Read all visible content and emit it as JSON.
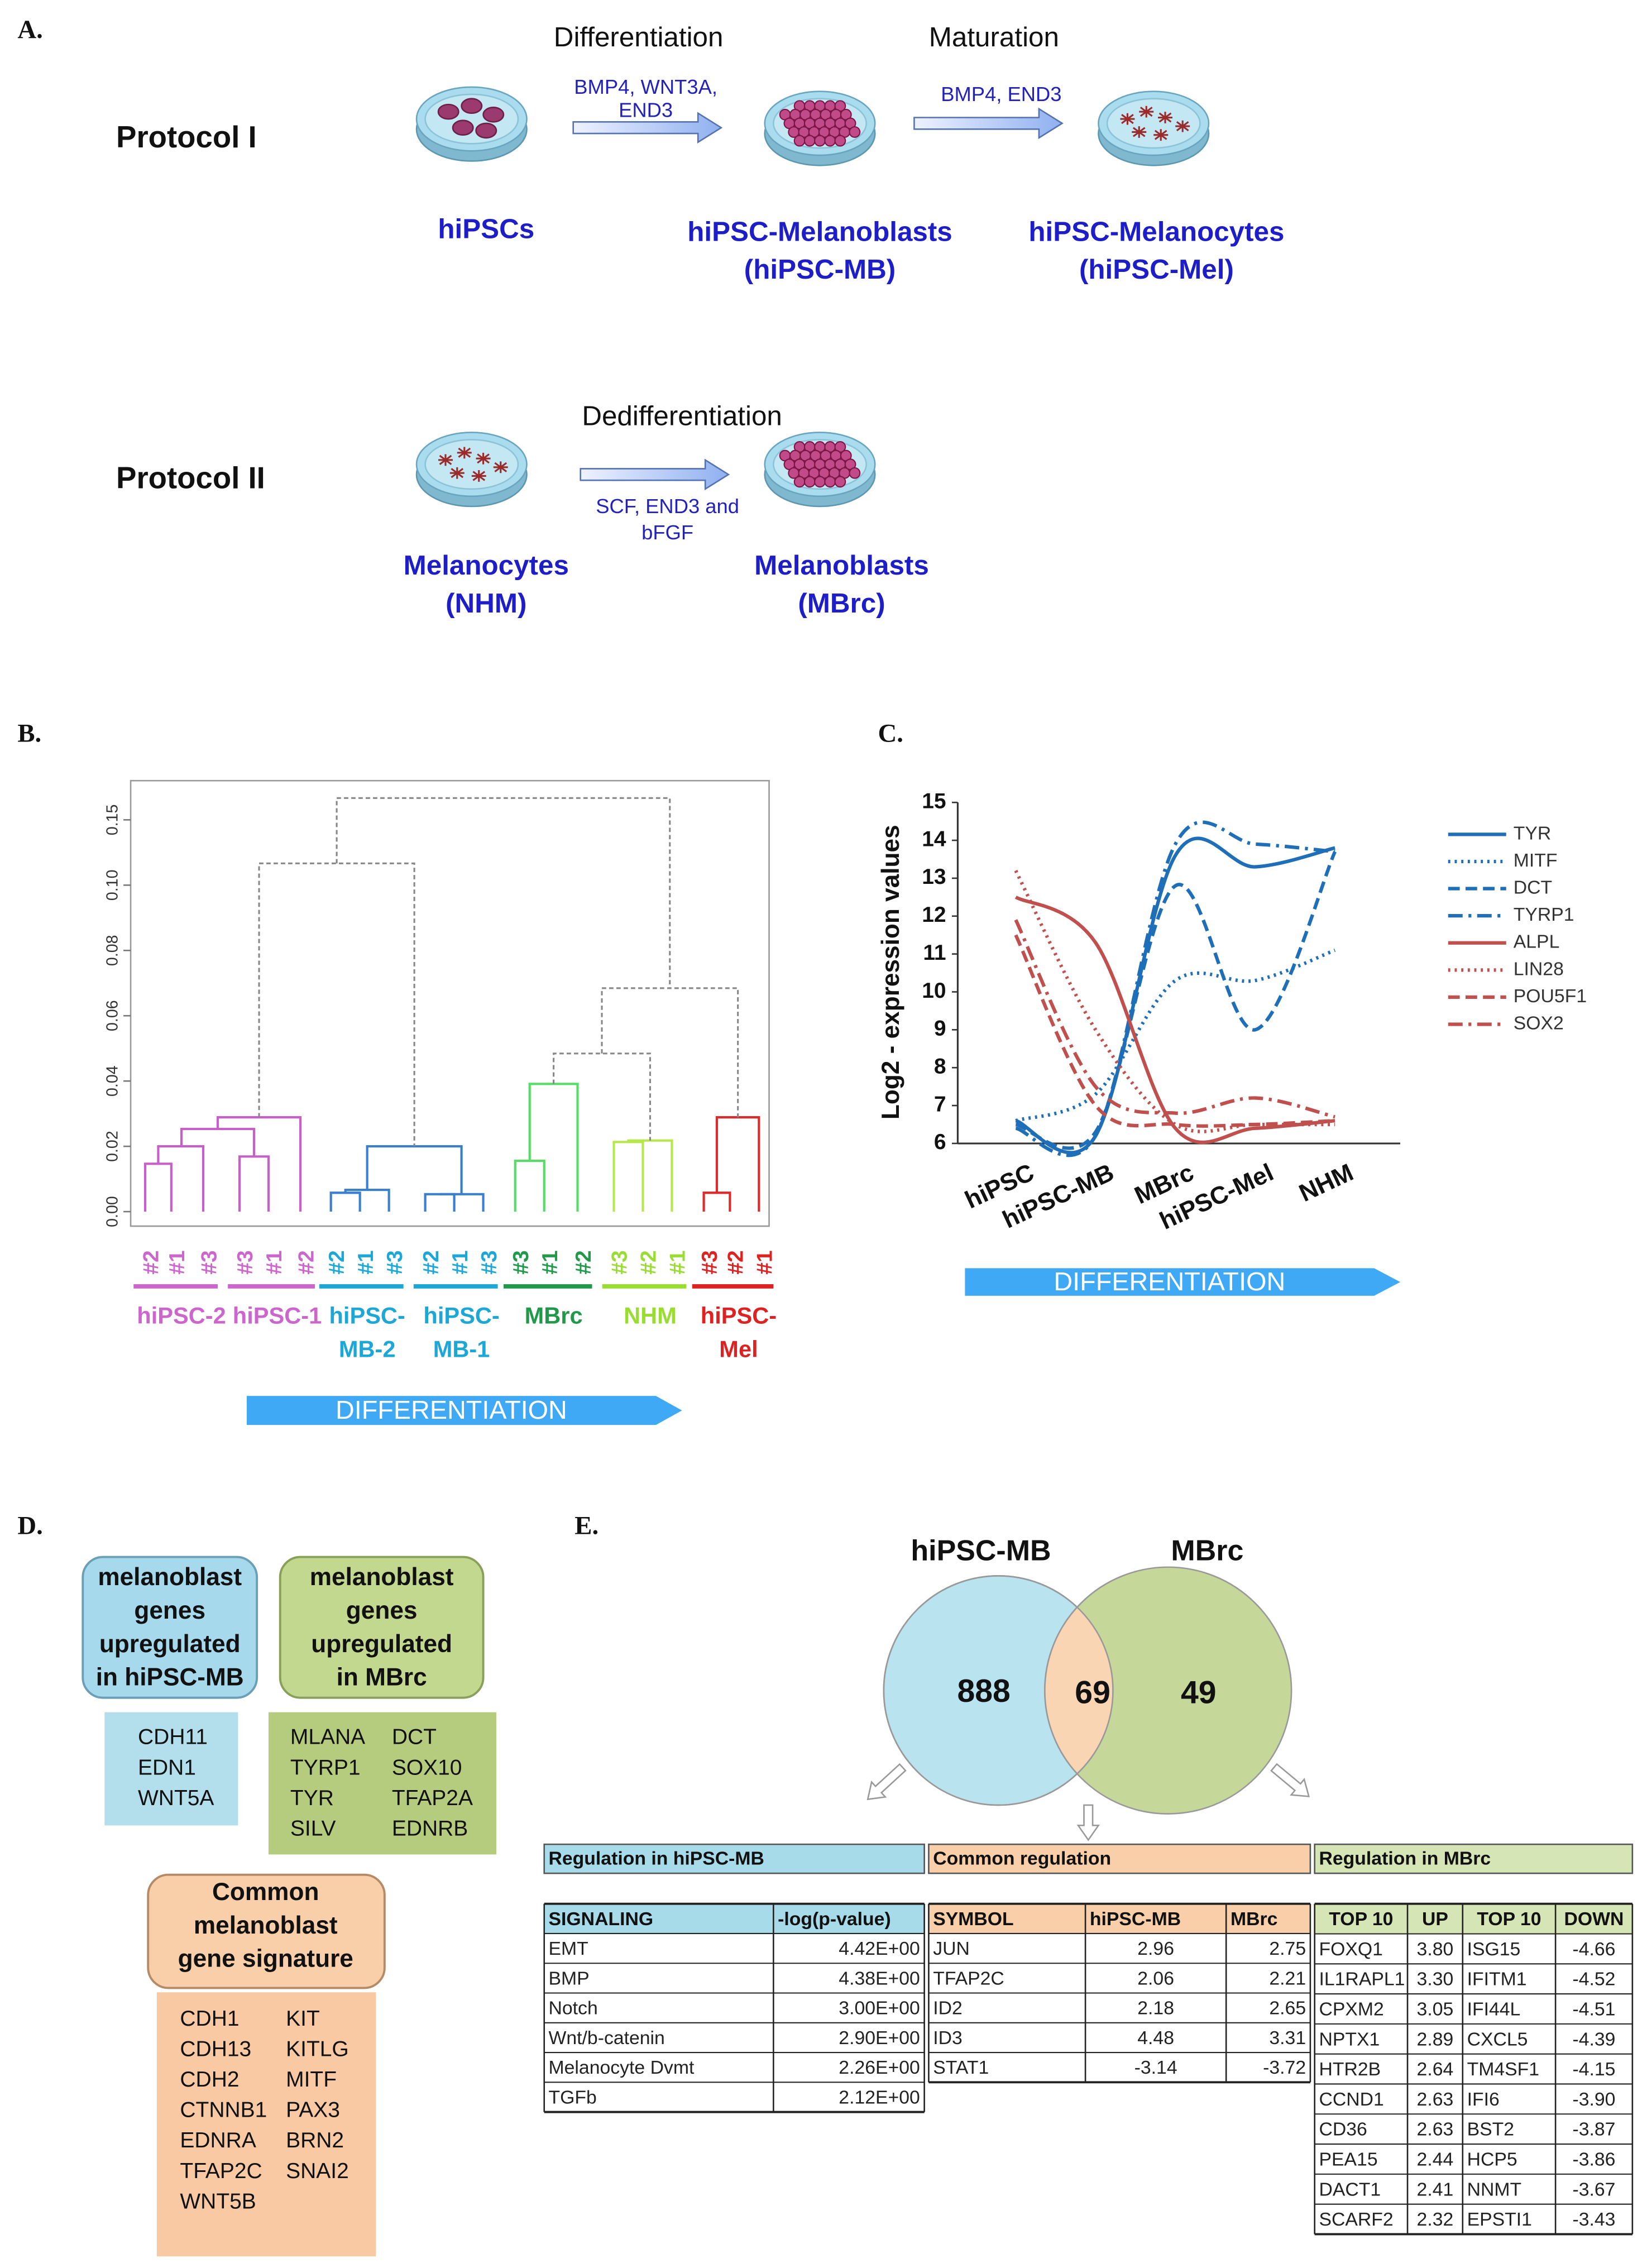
{
  "panel_a": {
    "label": "A.",
    "protocol_1": {
      "name": "Protocol I",
      "steps": [
        "Differentiation",
        "Maturation"
      ],
      "factors": [
        [
          "BMP4, WNT3A,",
          "END3"
        ],
        [
          "BMP4, END3"
        ]
      ],
      "cells": [
        [
          "hiPSCs"
        ],
        [
          "hiPSC-Melanoblasts",
          "(hiPSC-MB)"
        ],
        [
          "hiPSC-Melanocytes",
          "(hiPSC-Mel)"
        ]
      ]
    },
    "protocol_2": {
      "name": "Protocol II",
      "steps": [
        "Dedifferentiation"
      ],
      "factors": [
        [
          "SCF, END3 and",
          "bFGF"
        ]
      ],
      "cells": [
        [
          "Melanocytes",
          "(NHM)"
        ],
        [
          "Melanoblasts",
          "(MBrc)"
        ]
      ]
    }
  },
  "panel_b": {
    "label": "B.",
    "axis_labels": [
      "0.00",
      "0.02",
      "0.04",
      "0.06",
      "0.08",
      "0.10",
      "0.15"
    ],
    "groups": [
      {
        "name": [
          "hiPSC-2"
        ],
        "color": "#cc66cc",
        "branch_color": "#c85fc8",
        "leaves": [
          "#2",
          "#1",
          "#3"
        ]
      },
      {
        "name": [
          "hiPSC-1"
        ],
        "color": "#cc66cc",
        "branch_color": "#c85fc8",
        "leaves": [
          "#3",
          "#1",
          "#2"
        ]
      },
      {
        "name": [
          "hiPSC-",
          "MB-2"
        ],
        "color": "#1ca7d6",
        "branch_color": "#3a7fd0",
        "leaves": [
          "#2",
          "#1",
          "#3"
        ]
      },
      {
        "name": [
          "hiPSC-",
          "MB-1"
        ],
        "color": "#1ca7d6",
        "branch_color": "#3a7fd0",
        "leaves": [
          "#2",
          "#1",
          "#3"
        ]
      },
      {
        "name": [
          "MBrc"
        ],
        "color": "#22994a",
        "branch_color": "#55dd66",
        "leaves": [
          "#3",
          "#1",
          "#2"
        ]
      },
      {
        "name": [
          "NHM"
        ],
        "color": "#99dd33",
        "branch_color": "#b5e94a",
        "leaves": [
          "#3",
          "#2",
          "#1"
        ]
      },
      {
        "name": [
          "hiPSC-",
          "Mel"
        ],
        "color": "#dd2222",
        "branch_color": "#dd2b2b",
        "leaves": [
          "#3",
          "#2",
          "#1"
        ]
      }
    ],
    "arrow": "DIFFERENTIATION"
  },
  "chart_data": {
    "type": "line",
    "panel_label": "C.",
    "y_label": "Log2 - expression values",
    "arrow": "DIFFERENTIATION",
    "categories": [
      "hiPSC",
      "hiPSC-MB",
      "MBrc",
      "hiPSC-Mel",
      "NHM"
    ],
    "ylim": [
      6,
      15
    ],
    "yticks": [
      6,
      7,
      8,
      9,
      10,
      11,
      12,
      13,
      14,
      15
    ],
    "grid": false,
    "legend": "right",
    "series": [
      {
        "name": "TYR",
        "color": "#1f6fb8",
        "dash": "solid",
        "values": [
          6.6,
          6.2,
          13.6,
          13.3,
          13.8
        ]
      },
      {
        "name": "MITF",
        "color": "#1f6fb8",
        "dash": "dotted",
        "values": [
          6.6,
          7.3,
          10.3,
          10.3,
          11.1
        ]
      },
      {
        "name": "DCT",
        "color": "#1f6fb8",
        "dash": "dashed",
        "values": [
          6.5,
          6.3,
          12.8,
          9.0,
          13.7
        ]
      },
      {
        "name": "TYRP1",
        "color": "#1f6fb8",
        "dash": "dashdot",
        "values": [
          6.4,
          6.2,
          13.9,
          13.9,
          13.7
        ]
      },
      {
        "name": "ALPL",
        "color": "#c0504d",
        "dash": "solid",
        "values": [
          12.5,
          11.3,
          6.4,
          6.4,
          6.6
        ]
      },
      {
        "name": "LIN28",
        "color": "#c0504d",
        "dash": "dotted",
        "values": [
          13.2,
          9.0,
          6.5,
          6.5,
          6.5
        ]
      },
      {
        "name": "POU5F1",
        "color": "#c0504d",
        "dash": "dashed",
        "values": [
          11.5,
          7.0,
          6.5,
          6.5,
          6.6
        ]
      },
      {
        "name": "SOX2",
        "color": "#c0504d",
        "dash": "dashdot",
        "values": [
          11.9,
          7.5,
          6.8,
          7.2,
          6.7
        ]
      }
    ]
  },
  "panel_d": {
    "label": "D.",
    "box_hipsc": [
      "melanoblast",
      "genes",
      "upregulated",
      "in hiPSC-MB"
    ],
    "genes_hipsc": [
      "CDH11",
      "EDN1",
      "WNT5A"
    ],
    "box_mbrc": [
      "melanoblast",
      "genes",
      "upregulated",
      "in MBrc"
    ],
    "genes_mbrc": [
      [
        "MLANA",
        "TYRP1",
        "TYR",
        "SILV"
      ],
      [
        "DCT",
        "SOX10",
        "TFAP2A",
        "EDNRB"
      ]
    ],
    "box_common": [
      "Common",
      "melanoblast",
      "gene signature"
    ],
    "genes_common": [
      [
        "CDH1",
        "CDH13",
        "CDH2",
        "CTNNB1",
        "EDNRA",
        "TFAP2C",
        "WNT5B"
      ],
      [
        "KIT",
        "KITLG",
        "MITF",
        "PAX3",
        "BRN2",
        "SNAI2"
      ]
    ]
  },
  "panel_e": {
    "label": "E.",
    "sets": [
      "hiPSC-MB",
      "MBrc"
    ],
    "counts": [
      "888",
      "69",
      "49"
    ],
    "tables": [
      {
        "title": "Regulation in hiPSC-MB",
        "header": [
          "SIGNALING",
          "-log(p-value)"
        ],
        "rows": [
          [
            "EMT",
            "4.42E+00"
          ],
          [
            "BMP",
            "4.38E+00"
          ],
          [
            "Notch",
            "3.00E+00"
          ],
          [
            "Wnt/b-catenin",
            "2.90E+00"
          ],
          [
            "Melanocyte Dvmt",
            "2.26E+00"
          ],
          [
            "TGFb",
            "2.12E+00"
          ]
        ]
      },
      {
        "title": "Common regulation",
        "header": [
          "SYMBOL",
          "hiPSC-MB",
          "MBrc"
        ],
        "rows": [
          [
            "JUN",
            "2.96",
            "2.75"
          ],
          [
            "TFAP2C",
            "2.06",
            "2.21"
          ],
          [
            "ID2",
            "2.18",
            "2.65"
          ],
          [
            "ID3",
            "4.48",
            "3.31"
          ],
          [
            "STAT1",
            "-3.14",
            "-3.72"
          ]
        ]
      },
      {
        "title": "Regulation in MBrc",
        "header": [
          "TOP 10",
          "UP",
          "TOP 10",
          "DOWN"
        ],
        "rows": [
          [
            "FOXQ1",
            "3.80",
            "ISG15",
            "-4.66"
          ],
          [
            "IL1RAPL1",
            "3.30",
            "IFITM1",
            "-4.52"
          ],
          [
            "CPXM2",
            "3.05",
            "IFI44L",
            "-4.51"
          ],
          [
            "NPTX1",
            "2.89",
            "CXCL5",
            "-4.39"
          ],
          [
            "HTR2B",
            "2.64",
            "TM4SF1",
            "-4.15"
          ],
          [
            "CCND1",
            "2.63",
            "IFI6",
            "-3.90"
          ],
          [
            "CD36",
            "2.63",
            "BST2",
            "-3.87"
          ],
          [
            "PEA15",
            "2.44",
            "HCP5",
            "-3.86"
          ],
          [
            "DACT1",
            "2.41",
            "NNMT",
            "-3.67"
          ],
          [
            "SCARF2",
            "2.32",
            "EPSTI1",
            "-3.43"
          ]
        ]
      }
    ]
  }
}
